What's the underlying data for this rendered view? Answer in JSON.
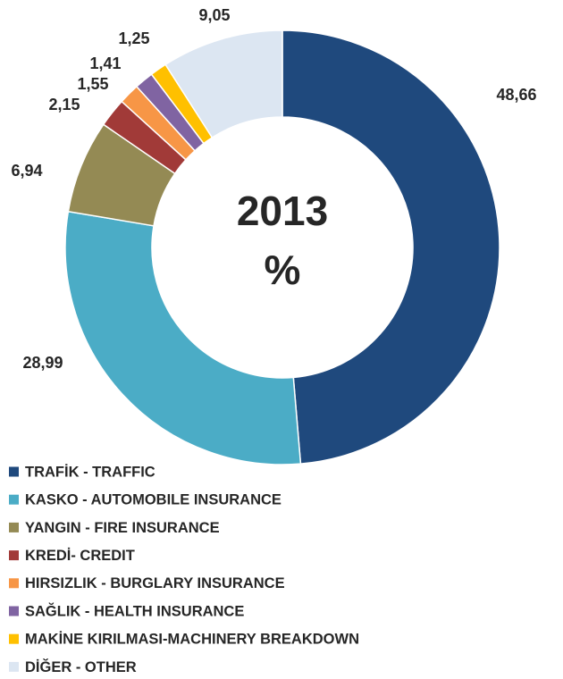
{
  "chart_data": {
    "type": "pie",
    "title": "2013",
    "subtitle": "%",
    "categories": [
      "TRAFİK - TRAFFIC",
      "KASKO - AUTOMOBILE INSURANCE",
      "YANGIN - FIRE INSURANCE",
      "KREDİ- CREDIT",
      "HIRSIZLIK - BURGLARY INSURANCE",
      "SAĞLIK - HEALTH INSURANCE",
      "MAKİNE KIRILMASI-MACHINERY BREAKDOWN",
      "DİĞER - OTHER"
    ],
    "values": [
      48.66,
      28.99,
      6.94,
      2.15,
      1.55,
      1.41,
      1.25,
      9.05
    ],
    "value_labels": [
      "48,66",
      "28,99",
      "6,94",
      "2,15",
      "1,55",
      "1,41",
      "1,25",
      "9,05"
    ],
    "colors": [
      "#1f497d",
      "#4bacc6",
      "#948a54",
      "#a13a38",
      "#f79646",
      "#8064a2",
      "#ffc000",
      "#dce6f2"
    ],
    "legend": "bottom-left"
  }
}
